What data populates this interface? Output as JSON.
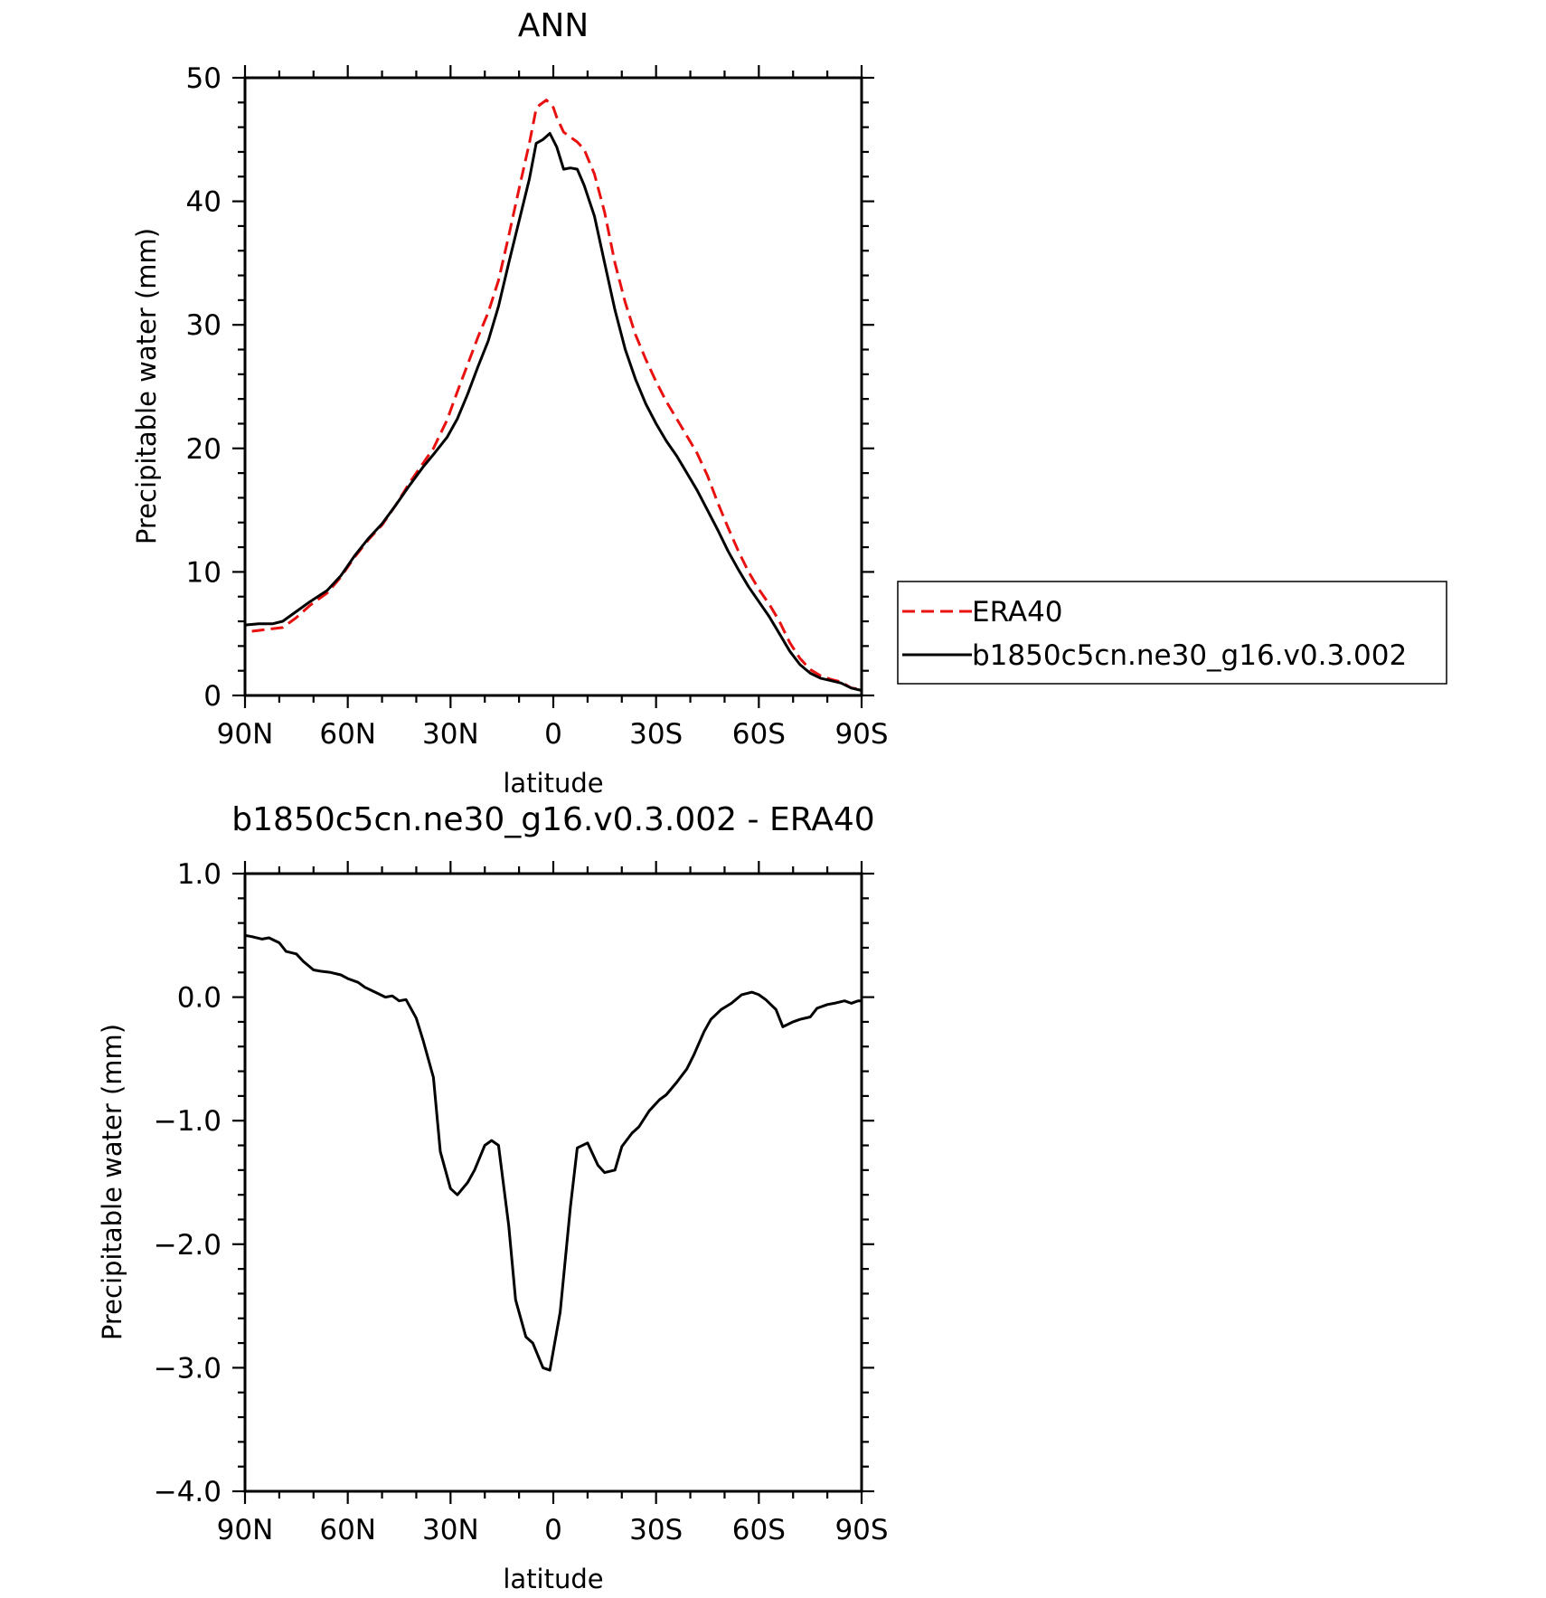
{
  "chart_data": [
    {
      "type": "line",
      "title": "ANN",
      "xlabel": "latitude",
      "ylabel": "Precipitable water (mm)",
      "xlim": [
        90,
        -90
      ],
      "ylim": [
        0,
        50
      ],
      "x_ticks": [
        90,
        60,
        30,
        0,
        -30,
        -60,
        -90
      ],
      "x_tick_labels": [
        "90N",
        "60N",
        "30N",
        "0",
        "30S",
        "60S",
        "90S"
      ],
      "y_ticks": [
        0,
        10,
        20,
        30,
        40,
        50
      ],
      "y_tick_labels": [
        "0",
        "10",
        "20",
        "30",
        "40",
        "50"
      ],
      "legend": {
        "placement": "outside-right",
        "entries": [
          "ERA40",
          "b1850c5cn.ne30_g16.v0.3.002"
        ]
      },
      "series": [
        {
          "name": "ERA40",
          "color": "#e8110f",
          "dash": "dashed",
          "points": [
            [
              88,
              5.2
            ],
            [
              85,
              5.3
            ],
            [
              82,
              5.4
            ],
            [
              79,
              5.5
            ],
            [
              75,
              6.3
            ],
            [
              71,
              7.3
            ],
            [
              66,
              8.3
            ],
            [
              62,
              9.6
            ],
            [
              58,
              11.2
            ],
            [
              54,
              12.6
            ],
            [
              50,
              13.8
            ],
            [
              46,
              15.4
            ],
            [
              42,
              17.2
            ],
            [
              38,
              18.8
            ],
            [
              35,
              20.0
            ],
            [
              31,
              22.3
            ],
            [
              28,
              24.6
            ],
            [
              25,
              26.8
            ],
            [
              22,
              29.0
            ],
            [
              19,
              31.0
            ],
            [
              16,
              33.6
            ],
            [
              13,
              37.2
            ],
            [
              10,
              41.0
            ],
            [
              7,
              44.7
            ],
            [
              5,
              47.5
            ],
            [
              4,
              47.8
            ],
            [
              2,
              48.2
            ],
            [
              0,
              47.6
            ],
            [
              -1,
              46.8
            ],
            [
              -3,
              45.6
            ],
            [
              -5,
              45.2
            ],
            [
              -7,
              44.8
            ],
            [
              -9,
              44.2
            ],
            [
              -12,
              42.2
            ],
            [
              -15,
              39.1
            ],
            [
              -18,
              35.0
            ],
            [
              -21,
              31.8
            ],
            [
              -24,
              29.2
            ],
            [
              -27,
              27.2
            ],
            [
              -30,
              25.4
            ],
            [
              -33,
              23.8
            ],
            [
              -36,
              22.4
            ],
            [
              -39,
              21.0
            ],
            [
              -42,
              19.6
            ],
            [
              -45,
              17.8
            ],
            [
              -48,
              15.6
            ],
            [
              -51,
              13.6
            ],
            [
              -54,
              11.7
            ],
            [
              -57,
              10.0
            ],
            [
              -60,
              8.6
            ],
            [
              -63,
              7.4
            ],
            [
              -66,
              6.0
            ],
            [
              -69,
              4.3
            ],
            [
              -72,
              3.0
            ],
            [
              -75,
              2.1
            ],
            [
              -78,
              1.6
            ],
            [
              -81,
              1.3
            ],
            [
              -84,
              1.1
            ],
            [
              -87,
              0.6
            ],
            [
              -90,
              0.5
            ]
          ]
        },
        {
          "name": "b1850c5cn.ne30_g16.v0.3.002",
          "color": "#000000",
          "dash": "solid",
          "points": [
            [
              90,
              5.7
            ],
            [
              86,
              5.8
            ],
            [
              82,
              5.8
            ],
            [
              79,
              6.0
            ],
            [
              75,
              6.8
            ],
            [
              71,
              7.6
            ],
            [
              66,
              8.5
            ],
            [
              62,
              9.7
            ],
            [
              58,
              11.3
            ],
            [
              54,
              12.7
            ],
            [
              50,
              13.9
            ],
            [
              46,
              15.4
            ],
            [
              42,
              17.0
            ],
            [
              38,
              18.5
            ],
            [
              35,
              19.5
            ],
            [
              31,
              20.9
            ],
            [
              28,
              22.4
            ],
            [
              25,
              24.4
            ],
            [
              22,
              26.6
            ],
            [
              19,
              28.7
            ],
            [
              16,
              31.5
            ],
            [
              13,
              35.0
            ],
            [
              10,
              38.4
            ],
            [
              7,
              41.8
            ],
            [
              5,
              44.7
            ],
            [
              3,
              45.0
            ],
            [
              1,
              45.5
            ],
            [
              -1,
              44.4
            ],
            [
              -3,
              42.6
            ],
            [
              -5,
              42.7
            ],
            [
              -7,
              42.6
            ],
            [
              -9,
              41.3
            ],
            [
              -12,
              38.8
            ],
            [
              -15,
              35.0
            ],
            [
              -18,
              31.2
            ],
            [
              -21,
              28.0
            ],
            [
              -24,
              25.6
            ],
            [
              -27,
              23.6
            ],
            [
              -30,
              22.0
            ],
            [
              -33,
              20.6
            ],
            [
              -36,
              19.4
            ],
            [
              -39,
              18.0
            ],
            [
              -42,
              16.6
            ],
            [
              -45,
              15.0
            ],
            [
              -48,
              13.4
            ],
            [
              -51,
              11.7
            ],
            [
              -54,
              10.2
            ],
            [
              -57,
              8.8
            ],
            [
              -60,
              7.6
            ],
            [
              -63,
              6.4
            ],
            [
              -66,
              5.0
            ],
            [
              -69,
              3.6
            ],
            [
              -72,
              2.5
            ],
            [
              -75,
              1.8
            ],
            [
              -78,
              1.4
            ],
            [
              -81,
              1.2
            ],
            [
              -84,
              1.0
            ],
            [
              -87,
              0.6
            ],
            [
              -90,
              0.4
            ]
          ]
        }
      ]
    },
    {
      "type": "line",
      "title": "b1850c5cn.ne30_g16.v0.3.002 - ERA40",
      "xlabel": "latitude",
      "ylabel": "Precipitable water (mm)",
      "xlim": [
        90,
        -90
      ],
      "ylim": [
        -4.0,
        1.0
      ],
      "x_ticks": [
        90,
        60,
        30,
        0,
        -30,
        -60,
        -90
      ],
      "x_tick_labels": [
        "90N",
        "60N",
        "30N",
        "0",
        "30S",
        "60S",
        "90S"
      ],
      "y_ticks": [
        1.0,
        0.0,
        -1.0,
        -2.0,
        -3.0,
        -4.0
      ],
      "y_tick_labels": [
        "1.0",
        "0.0",
        "−1.0",
        "−2.0",
        "−3.0",
        "−4.0"
      ],
      "series": [
        {
          "color": "#000000",
          "dash": "solid",
          "points": [
            [
              90,
              0.5
            ],
            [
              88,
              0.49
            ],
            [
              85,
              0.47
            ],
            [
              83,
              0.48
            ],
            [
              80,
              0.44
            ],
            [
              78,
              0.37
            ],
            [
              75,
              0.35
            ],
            [
              73,
              0.29
            ],
            [
              70,
              0.22
            ],
            [
              68,
              0.21
            ],
            [
              65,
              0.2
            ],
            [
              62,
              0.18
            ],
            [
              60,
              0.15
            ],
            [
              57,
              0.12
            ],
            [
              55,
              0.08
            ],
            [
              52,
              0.04
            ],
            [
              49,
              0.0
            ],
            [
              47,
              0.01
            ],
            [
              45,
              -0.03
            ],
            [
              43,
              -0.02
            ],
            [
              40,
              -0.17
            ],
            [
              38,
              -0.35
            ],
            [
              35,
              -0.65
            ],
            [
              33,
              -1.25
            ],
            [
              30,
              -1.55
            ],
            [
              28,
              -1.6
            ],
            [
              25,
              -1.5
            ],
            [
              23,
              -1.4
            ],
            [
              20,
              -1.2
            ],
            [
              18,
              -1.16
            ],
            [
              16,
              -1.2
            ],
            [
              13,
              -1.85
            ],
            [
              11,
              -2.45
            ],
            [
              8,
              -2.75
            ],
            [
              6,
              -2.8
            ],
            [
              3,
              -3.0
            ],
            [
              1,
              -3.02
            ],
            [
              -2,
              -2.55
            ],
            [
              -5,
              -1.7
            ],
            [
              -7,
              -1.22
            ],
            [
              -10,
              -1.18
            ],
            [
              -13,
              -1.36
            ],
            [
              -15,
              -1.42
            ],
            [
              -18,
              -1.4
            ],
            [
              -20,
              -1.21
            ],
            [
              -23,
              -1.1
            ],
            [
              -25,
              -1.05
            ],
            [
              -28,
              -0.92
            ],
            [
              -31,
              -0.83
            ],
            [
              -33,
              -0.79
            ],
            [
              -36,
              -0.69
            ],
            [
              -39,
              -0.58
            ],
            [
              -41,
              -0.47
            ],
            [
              -44,
              -0.28
            ],
            [
              -46,
              -0.18
            ],
            [
              -49,
              -0.1
            ],
            [
              -52,
              -0.05
            ],
            [
              -55,
              0.02
            ],
            [
              -58,
              0.04
            ],
            [
              -60,
              0.02
            ],
            [
              -62,
              -0.02
            ],
            [
              -65,
              -0.1
            ],
            [
              -67,
              -0.24
            ],
            [
              -70,
              -0.2
            ],
            [
              -72,
              -0.18
            ],
            [
              -75,
              -0.16
            ],
            [
              -77,
              -0.09
            ],
            [
              -80,
              -0.06
            ],
            [
              -82,
              -0.05
            ],
            [
              -85,
              -0.03
            ],
            [
              -87,
              -0.05
            ],
            [
              -89,
              -0.03
            ],
            [
              -90,
              -0.03
            ]
          ]
        }
      ]
    }
  ]
}
